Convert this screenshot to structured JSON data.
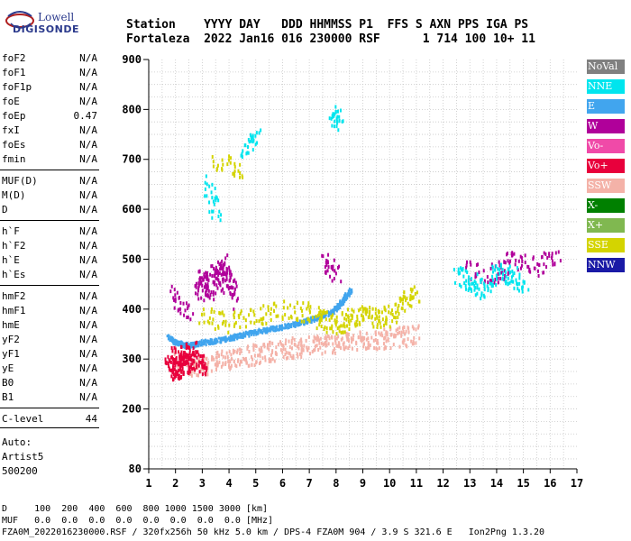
{
  "logo": {
    "line1": "Lowell",
    "line2": "DIGISONDE"
  },
  "header": {
    "line1": "Station    YYYY DAY   DDD HHMMSS P1  FFS S AXN PPS IGA PS",
    "line2": "Fortaleza  2022 Jan16 016 230000 RSF      1 714 100 10+ 11"
  },
  "params": [
    {
      "label": "foF2",
      "value": "N/A"
    },
    {
      "label": "foF1",
      "value": "N/A"
    },
    {
      "label": "foF1p",
      "value": "N/A"
    },
    {
      "label": "foE",
      "value": "N/A"
    },
    {
      "label": "foEp",
      "value": "0.47"
    },
    {
      "label": "fxI",
      "value": "N/A"
    },
    {
      "label": "foEs",
      "value": "N/A"
    },
    {
      "label": "fmin",
      "value": "N/A"
    },
    {
      "label": "MUF(D)",
      "value": "N/A"
    },
    {
      "label": "M(D)",
      "value": "N/A"
    },
    {
      "label": "D",
      "value": "N/A"
    },
    {
      "label": "h`F",
      "value": "N/A"
    },
    {
      "label": "h`F2",
      "value": "N/A"
    },
    {
      "label": "h`E",
      "value": "N/A"
    },
    {
      "label": "h`Es",
      "value": "N/A"
    },
    {
      "label": "hmF2",
      "value": "N/A"
    },
    {
      "label": "hmF1",
      "value": "N/A"
    },
    {
      "label": "hmE",
      "value": "N/A"
    },
    {
      "label": "yF2",
      "value": "N/A"
    },
    {
      "label": "yF1",
      "value": "N/A"
    },
    {
      "label": "yE",
      "value": "N/A"
    },
    {
      "label": "B0",
      "value": "N/A"
    },
    {
      "label": "B1",
      "value": "N/A"
    },
    {
      "label": "C-level",
      "value": "44"
    }
  ],
  "auto": {
    "label": "Auto:",
    "name": "Artist5",
    "version": "500200"
  },
  "footer": {
    "line1": "D     100  200  400  600  800 1000 1500 3000 [km]",
    "line2": "MUF   0.0  0.0  0.0  0.0  0.0  0.0  0.0  0.0 [MHz]",
    "line3": "FZA0M_2022016230000.RSF / 320fx256h 50 kHz 5.0 km / DPS-4 FZA0M 904 / 3.9 S 321.6 E   Ion2Png 1.3.20"
  },
  "legend": [
    {
      "label": "NoVal",
      "color": "#808080"
    },
    {
      "label": "NNE",
      "color": "#00e5ee"
    },
    {
      "label": "E",
      "color": "#41a5ee"
    },
    {
      "label": "W",
      "color": "#b0009a"
    },
    {
      "label": "Vo-",
      "color": "#f04aa8"
    },
    {
      "label": "Vo+",
      "color": "#e8003c"
    },
    {
      "label": "SSW",
      "color": "#f4b2a8"
    },
    {
      "label": "X-",
      "color": "#008000"
    },
    {
      "label": "X+",
      "color": "#80b850"
    },
    {
      "label": "SSE",
      "color": "#d4d400"
    },
    {
      "label": "NNW",
      "color": "#1a1aa6"
    }
  ],
  "chart_data": {
    "type": "scatter",
    "title": "",
    "xlabel": "",
    "ylabel": "",
    "xlim": [
      1,
      17
    ],
    "ylim": [
      80,
      900
    ],
    "x_ticks": [
      "1",
      "2",
      "3",
      "4",
      "5",
      "6",
      "7",
      "8",
      "9",
      "10",
      "11",
      "12",
      "13",
      "14",
      "15",
      "16",
      "17"
    ],
    "y_ticks": [
      {
        "value": 900,
        "label": "900"
      },
      {
        "value": 800,
        "label": "800"
      },
      {
        "value": 700,
        "label": "700"
      },
      {
        "value": 600,
        "label": "600"
      },
      {
        "value": 500,
        "label": "500"
      },
      {
        "value": 400,
        "label": "400"
      },
      {
        "value": 300,
        "label": "300"
      },
      {
        "value": 200,
        "label": "200"
      },
      {
        "value": 80,
        "label": "80"
      }
    ],
    "grid": true,
    "traces": [
      {
        "name": "E",
        "color": "#41a5ee",
        "points": [
          [
            1.7,
            345
          ],
          [
            2.0,
            335
          ],
          [
            2.3,
            330
          ],
          [
            2.6,
            330
          ],
          [
            3.0,
            335
          ],
          [
            3.4,
            338
          ],
          [
            3.8,
            342
          ],
          [
            4.2,
            347
          ],
          [
            4.6,
            352
          ],
          [
            5.0,
            357
          ],
          [
            5.5,
            362
          ],
          [
            6.0,
            367
          ],
          [
            6.5,
            373
          ],
          [
            7.0,
            380
          ],
          [
            7.4,
            387
          ],
          [
            7.8,
            396
          ],
          [
            8.1,
            410
          ],
          [
            8.3,
            425
          ],
          [
            8.5,
            438
          ]
        ]
      },
      {
        "name": "SSW",
        "color": "#f4b2a8",
        "points": [
          [
            2.0,
            295
          ],
          [
            2.5,
            290
          ],
          [
            3.0,
            290
          ],
          [
            3.5,
            300
          ],
          [
            4.0,
            305
          ],
          [
            4.5,
            308
          ],
          [
            5.0,
            312
          ],
          [
            5.5,
            318
          ],
          [
            6.0,
            322
          ],
          [
            6.5,
            326
          ],
          [
            7.0,
            330
          ],
          [
            7.5,
            333
          ],
          [
            8.0,
            335
          ],
          [
            8.5,
            338
          ],
          [
            9.0,
            340
          ],
          [
            9.5,
            342
          ],
          [
            10.0,
            345
          ],
          [
            10.5,
            348
          ],
          [
            11.0,
            350
          ]
        ]
      },
      {
        "name": "Vo+",
        "color": "#e8003c",
        "points": [
          [
            1.7,
            290
          ],
          [
            1.9,
            280
          ],
          [
            2.1,
            285
          ],
          [
            2.3,
            295
          ],
          [
            2.5,
            290
          ],
          [
            2.8,
            300
          ],
          [
            3.0,
            288
          ],
          [
            1.8,
            315
          ],
          [
            2.2,
            310
          ],
          [
            2.6,
            318
          ]
        ]
      },
      {
        "name": "W",
        "color": "#b0009a",
        "points": [
          [
            2.8,
            440
          ],
          [
            3.0,
            470
          ],
          [
            3.2,
            430
          ],
          [
            3.4,
            480
          ],
          [
            3.6,
            450
          ],
          [
            3.8,
            500
          ],
          [
            4.0,
            460
          ],
          [
            4.2,
            420
          ],
          [
            2.5,
            400
          ],
          [
            1.8,
            430
          ],
          [
            7.5,
            500
          ],
          [
            8.0,
            470
          ],
          [
            13.0,
            480
          ],
          [
            14.0,
            470
          ],
          [
            14.5,
            500
          ],
          [
            15.5,
            490
          ],
          [
            16.2,
            505
          ]
        ]
      },
      {
        "name": "SSE",
        "color": "#d4d400",
        "points": [
          [
            3.0,
            390
          ],
          [
            4.0,
            375
          ],
          [
            5.0,
            390
          ],
          [
            6.0,
            400
          ],
          [
            7.0,
            395
          ],
          [
            7.5,
            380
          ],
          [
            8.0,
            370
          ],
          [
            8.5,
            385
          ],
          [
            9.0,
            395
          ],
          [
            9.5,
            380
          ],
          [
            10.0,
            390
          ],
          [
            10.5,
            420
          ],
          [
            11.0,
            430
          ],
          [
            4.5,
            680
          ],
          [
            3.5,
            700
          ]
        ]
      },
      {
        "name": "NNE",
        "color": "#00e5ee",
        "points": [
          [
            3.2,
            650
          ],
          [
            3.5,
            600
          ],
          [
            4.5,
            720
          ],
          [
            5.0,
            750
          ],
          [
            7.9,
            780
          ],
          [
            8.1,
            790
          ],
          [
            12.5,
            470
          ],
          [
            13.0,
            460
          ],
          [
            13.5,
            440
          ],
          [
            14.0,
            480
          ],
          [
            14.5,
            470
          ],
          [
            15.0,
            450
          ]
        ]
      }
    ]
  }
}
